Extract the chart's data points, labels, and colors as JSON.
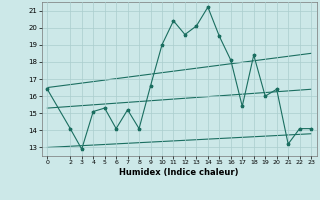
{
  "title": "",
  "xlabel": "Humidex (Indice chaleur)",
  "xlim": [
    -0.5,
    23.5
  ],
  "ylim": [
    12.5,
    21.5
  ],
  "xticks": [
    0,
    2,
    3,
    4,
    5,
    6,
    7,
    8,
    9,
    10,
    11,
    12,
    13,
    14,
    15,
    16,
    17,
    18,
    19,
    20,
    21,
    22,
    23
  ],
  "yticks": [
    13,
    14,
    15,
    16,
    17,
    18,
    19,
    20,
    21
  ],
  "background_color": "#cce8e8",
  "line_color": "#1a6e60",
  "grid_color": "#aacece",
  "series": {
    "spiky": {
      "x": [
        0,
        2,
        3,
        4,
        5,
        6,
        7,
        8,
        9,
        10,
        11,
        12,
        13,
        14,
        15,
        16,
        17,
        18,
        19,
        20,
        21,
        22,
        23
      ],
      "y": [
        16.4,
        14.1,
        12.9,
        15.1,
        15.3,
        14.1,
        15.2,
        14.1,
        16.6,
        19.0,
        20.4,
        19.6,
        20.1,
        21.2,
        19.5,
        18.1,
        15.4,
        18.4,
        16.0,
        16.4,
        13.2,
        14.1,
        14.1
      ]
    },
    "upper_trend": {
      "x": [
        0,
        23
      ],
      "y": [
        16.5,
        18.5
      ]
    },
    "mid_trend": {
      "x": [
        0,
        23
      ],
      "y": [
        15.3,
        16.4
      ]
    },
    "lower_trend": {
      "x": [
        0,
        23
      ],
      "y": [
        13.0,
        13.8
      ]
    }
  }
}
